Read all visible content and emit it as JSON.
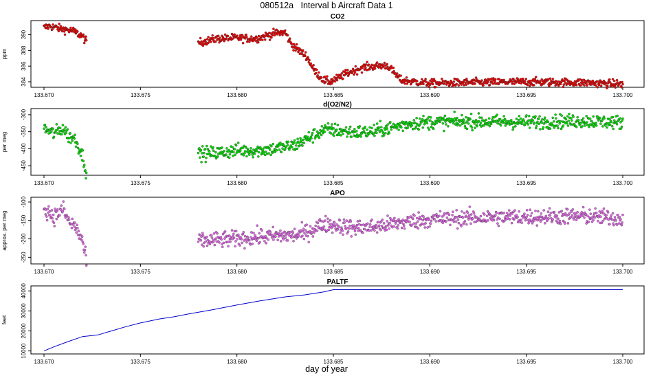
{
  "title": "080512a   Interval b Aircraft Data 1",
  "xlabel": "day of year",
  "chart_data": [
    {
      "type": "scatter",
      "title": "CO2",
      "ylabel": "ppm",
      "color": "#ee0000",
      "xlim": [
        133.67,
        133.7
      ],
      "ylim": [
        383.3,
        391.8
      ],
      "xticks": [
        133.67,
        133.675,
        133.68,
        133.685,
        133.69,
        133.695,
        133.7
      ],
      "xtick_labels": [
        "133.670",
        "133.675",
        "133.680",
        "133.685",
        "133.690",
        "133.695",
        "133.700"
      ],
      "yticks": [
        384,
        386,
        388,
        390
      ],
      "ytick_labels": [
        "384",
        "386",
        "388",
        "390"
      ],
      "noise": 0.25,
      "segments": [
        {
          "x": [
            133.67,
            133.6703,
            133.6708,
            133.6715,
            133.672,
            133.6722
          ],
          "y": [
            390.9,
            391.1,
            390.8,
            390.5,
            389.8,
            389.1
          ]
        },
        {
          "x": [
            133.678,
            133.679,
            133.68,
            133.681,
            133.682,
            133.6825,
            133.6828,
            133.6832,
            133.6836,
            133.684,
            133.6845,
            133.6848,
            133.6852,
            133.6858,
            133.6865,
            133.6872,
            133.6878,
            133.6885,
            133.69,
            133.692,
            133.695,
            133.698,
            133.7
          ],
          "y": [
            389.0,
            389.5,
            389.6,
            389.5,
            390.2,
            390.3,
            388.9,
            388.0,
            387.3,
            385.5,
            384.2,
            384.0,
            384.4,
            385.2,
            385.8,
            386.0,
            386.1,
            384.2,
            383.8,
            383.9,
            384.0,
            383.9,
            383.7
          ]
        }
      ]
    },
    {
      "type": "scatter",
      "title": "d(O2/N2)",
      "ylabel": "per meg",
      "color": "#00dd00",
      "xlim": [
        133.67,
        133.7
      ],
      "ylim": [
        -478,
        -282
      ],
      "xticks": [
        133.67,
        133.675,
        133.68,
        133.685,
        133.69,
        133.695,
        133.7
      ],
      "xtick_labels": [
        "133.670",
        "133.675",
        "133.680",
        "133.685",
        "133.690",
        "133.695",
        "133.700"
      ],
      "yticks": [
        -450,
        -400,
        -350,
        -300
      ],
      "ytick_labels": [
        "-450",
        "-400",
        "-350",
        "-300"
      ],
      "noise": 10,
      "segments": [
        {
          "x": [
            133.67,
            133.6705,
            133.671,
            133.6713,
            133.6716,
            133.672,
            133.6722
          ],
          "y": [
            -340,
            -355,
            -340,
            -365,
            -370,
            -420,
            -470
          ]
        },
        {
          "x": [
            133.678,
            133.679,
            133.68,
            133.681,
            133.682,
            133.683,
            133.6835,
            133.684,
            133.6845,
            133.685,
            133.686,
            133.687,
            133.688,
            133.689,
            133.69,
            133.692,
            133.695,
            133.698,
            133.7
          ],
          "y": [
            -415,
            -412,
            -405,
            -405,
            -400,
            -390,
            -375,
            -360,
            -345,
            -345,
            -352,
            -350,
            -338,
            -325,
            -322,
            -320,
            -322,
            -318,
            -323
          ]
        }
      ]
    },
    {
      "type": "scatter",
      "title": "APO",
      "ylabel": "approx. per meg",
      "color": "#e066e6",
      "xlim": [
        133.67,
        133.7
      ],
      "ylim": [
        -268,
        -87
      ],
      "xticks": [
        133.67,
        133.675,
        133.68,
        133.685,
        133.69,
        133.695,
        133.7
      ],
      "xtick_labels": [
        "133.670",
        "133.675",
        "133.680",
        "133.685",
        "133.690",
        "133.695",
        "133.700"
      ],
      "yticks": [
        -250,
        -200,
        -150,
        -100
      ],
      "ytick_labels": [
        "-250",
        "-200",
        "-150",
        "-100"
      ],
      "noise": 11,
      "segments": [
        {
          "x": [
            133.67,
            133.6705,
            133.671,
            133.6713,
            133.6716,
            133.672,
            133.6722
          ],
          "y": [
            -115,
            -140,
            -120,
            -155,
            -165,
            -205,
            -265
          ]
        },
        {
          "x": [
            133.678,
            133.679,
            133.68,
            133.681,
            133.682,
            133.683,
            133.6835,
            133.684,
            133.6845,
            133.685,
            133.686,
            133.687,
            133.688,
            133.689,
            133.69,
            133.692,
            133.695,
            133.698,
            133.7
          ],
          "y": [
            -205,
            -203,
            -200,
            -195,
            -192,
            -190,
            -185,
            -172,
            -160,
            -162,
            -170,
            -168,
            -160,
            -152,
            -147,
            -143,
            -140,
            -138,
            -145
          ]
        }
      ]
    },
    {
      "type": "line",
      "title": "PALTF",
      "ylabel": "feet",
      "color": "#0000cc",
      "xlim": [
        133.67,
        133.7
      ],
      "ylim": [
        8500,
        42500
      ],
      "xticks": [
        133.67,
        133.675,
        133.68,
        133.685,
        133.69,
        133.695,
        133.7
      ],
      "xtick_labels": [
        "133.670",
        "133.675",
        "133.680",
        "133.685",
        "133.690",
        "133.695",
        "133.700"
      ],
      "yticks": [
        10000,
        20000,
        30000,
        40000
      ],
      "ytick_labels": [
        "10000",
        "20000",
        "30000",
        "40000"
      ],
      "x": [
        133.67,
        133.6705,
        133.6712,
        133.672,
        133.6728,
        133.6735,
        133.6742,
        133.675,
        133.676,
        133.6767,
        133.6775,
        133.6787,
        133.68,
        133.6812,
        133.6825,
        133.6835,
        133.6845,
        133.685,
        133.687,
        133.69,
        133.695,
        133.7
      ],
      "y": [
        10000,
        12000,
        14500,
        17200,
        18000,
        20000,
        22000,
        24000,
        26000,
        27000,
        28500,
        30500,
        33000,
        35000,
        37000,
        38000,
        39500,
        40600,
        40600,
        40600,
        40600,
        40600
      ]
    }
  ]
}
